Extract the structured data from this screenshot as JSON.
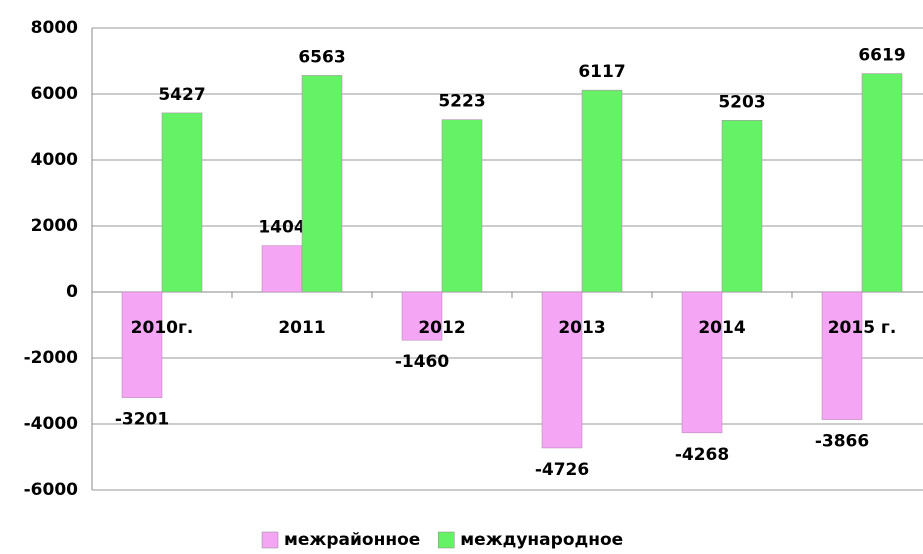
{
  "chart_data": {
    "type": "bar",
    "categories": [
      "2010г.",
      "2011",
      "2012",
      "2013",
      "2014",
      "2015 г."
    ],
    "series": [
      {
        "name": "межрайонное",
        "color": "#f4a6f4",
        "values": [
          -3201,
          1404,
          -1460,
          -4726,
          -4268,
          -3866
        ]
      },
      {
        "name": "международное",
        "color": "#66f266",
        "values": [
          5427,
          6563,
          5223,
          6117,
          5203,
          6619
        ]
      }
    ],
    "ylim": [
      -6000,
      8000
    ],
    "yticks": [
      -6000,
      -4000,
      -2000,
      0,
      2000,
      4000,
      6000,
      8000
    ],
    "grid": true,
    "legend": "bottom"
  }
}
